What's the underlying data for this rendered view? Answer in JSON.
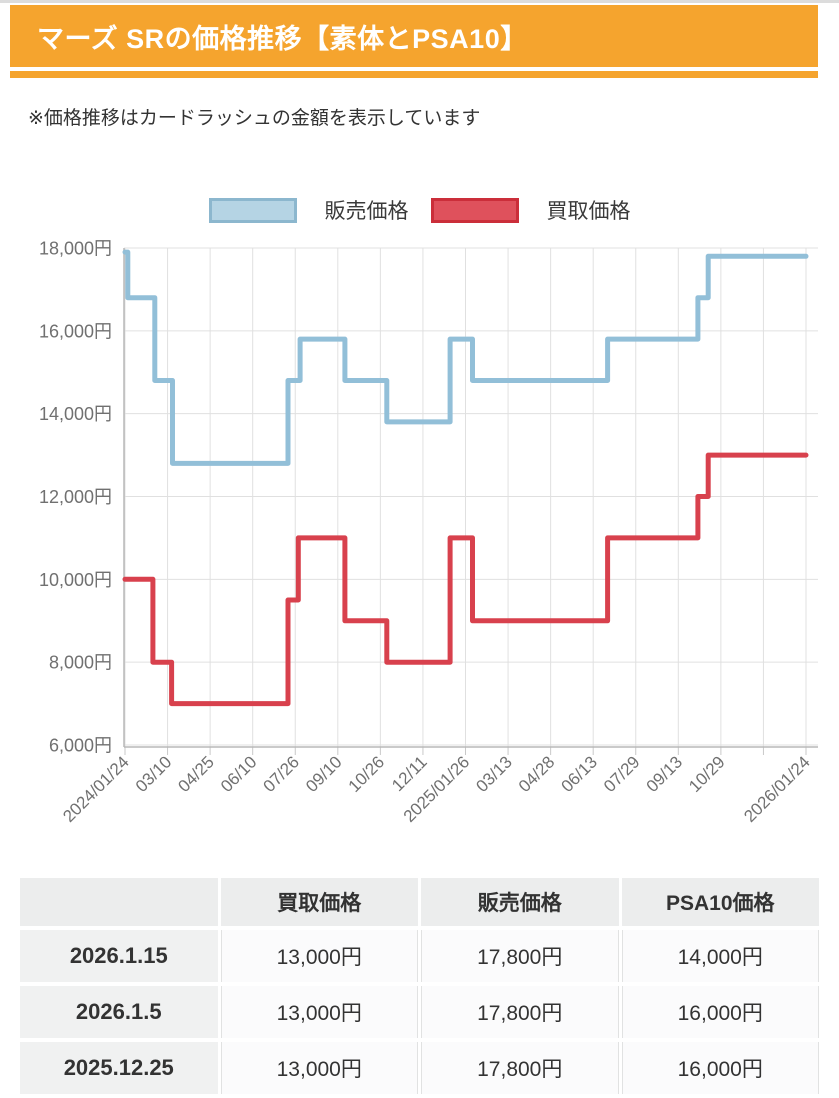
{
  "header": {
    "title": "マーズ SRの価格推移【素体とPSA10】",
    "accent_color": "#F5A42E"
  },
  "note": {
    "text": "※価格推移はカードラッシュの金額を表示しています"
  },
  "chart_data": {
    "type": "line",
    "step_style": true,
    "title": "マーズ SRの価格推移",
    "xlabel": "",
    "ylabel": "",
    "grid": true,
    "legend_position": "top-center",
    "x_axis": {
      "tick_labels": [
        "2024/01/24",
        "03/10",
        "04/25",
        "06/10",
        "07/26",
        "09/10",
        "10/26",
        "12/11",
        "2025/01/26",
        "03/13",
        "04/28",
        "06/13",
        "07/29",
        "09/13",
        "10/29",
        "",
        "2026/01/24"
      ],
      "range_days": [
        0,
        731
      ]
    },
    "y_axis": {
      "lim": [
        6000,
        18000
      ],
      "ticks": [
        {
          "value": 18000,
          "label": "18,000円"
        },
        {
          "value": 16000,
          "label": "16,000円"
        },
        {
          "value": 14000,
          "label": "14,000円"
        },
        {
          "value": 12000,
          "label": "12,000円"
        },
        {
          "value": 10000,
          "label": "10,000円"
        },
        {
          "value": 8000,
          "label": "8,000円"
        },
        {
          "value": 6000,
          "label": "6,000円"
        }
      ]
    },
    "series": [
      {
        "name": "販売価格",
        "color": "#92BFD8",
        "legend_fill": "#B5D4E4",
        "legend_border": "#8CB7CE",
        "points_day_value": [
          [
            0,
            17900
          ],
          [
            3,
            16800
          ],
          [
            32,
            14800
          ],
          [
            51,
            12800
          ],
          [
            175,
            14800
          ],
          [
            188,
            15800
          ],
          [
            236,
            14800
          ],
          [
            281,
            13800
          ],
          [
            349,
            15800
          ],
          [
            373,
            14800
          ],
          [
            518,
            15800
          ],
          [
            615,
            16800
          ],
          [
            626,
            17800
          ]
        ]
      },
      {
        "name": "買取価格",
        "color": "#D8414D",
        "legend_fill": "#DF515C",
        "legend_border": "#CB2E3A",
        "points_day_value": [
          [
            0,
            10000
          ],
          [
            30,
            8000
          ],
          [
            50,
            7000
          ],
          [
            175,
            9500
          ],
          [
            186,
            11000
          ],
          [
            236,
            9000
          ],
          [
            281,
            8000
          ],
          [
            349,
            11000
          ],
          [
            373,
            9000
          ],
          [
            518,
            11000
          ],
          [
            615,
            12000
          ],
          [
            626,
            13000
          ]
        ]
      }
    ]
  },
  "table": {
    "headers": [
      "",
      "買取価格",
      "販売価格",
      "PSA10価格"
    ],
    "rows": [
      {
        "date": "2026.1.15",
        "buy": "13,000円",
        "sell": "17,800円",
        "psa10": "14,000円"
      },
      {
        "date": "2026.1.5",
        "buy": "13,000円",
        "sell": "17,800円",
        "psa10": "16,000円"
      },
      {
        "date": "2025.12.25",
        "buy": "13,000円",
        "sell": "17,800円",
        "psa10": "16,000円"
      }
    ]
  }
}
